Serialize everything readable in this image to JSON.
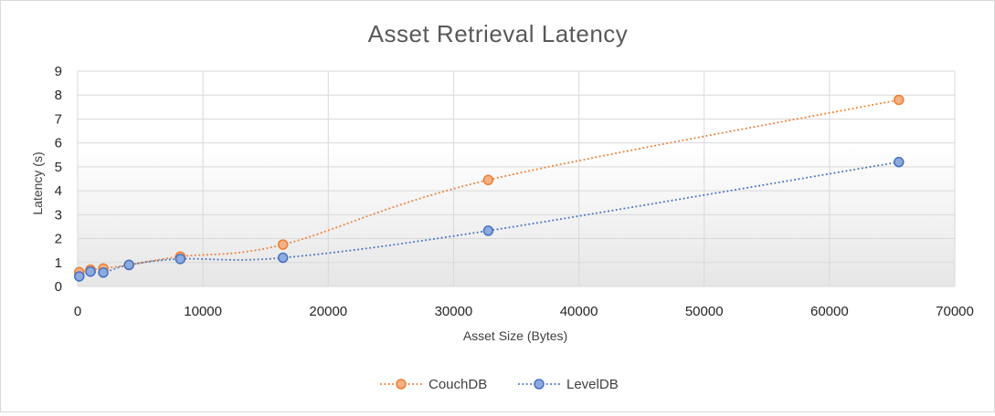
{
  "chart_data": {
    "type": "scatter",
    "title": "Asset Retrieval Latency",
    "xlabel": "Asset Size (Bytes)",
    "ylabel": "Latency (s)",
    "xlim": [
      0,
      70000
    ],
    "ylim": [
      0,
      9
    ],
    "x_ticks": [
      "0",
      "10000",
      "20000",
      "30000",
      "40000",
      "50000",
      "60000",
      "70000"
    ],
    "y_ticks": [
      "0",
      "1",
      "2",
      "3",
      "4",
      "5",
      "6",
      "7",
      "8",
      "9"
    ],
    "grid": true,
    "legend_position": "bottom",
    "line_style": "dotted smoothed",
    "series": [
      {
        "name": "CouchDB",
        "color": "#ED7D31",
        "fill": "#F4B183",
        "x": [
          128,
          1024,
          2048,
          4096,
          8192,
          16384,
          32768,
          65536
        ],
        "y": [
          0.6,
          0.7,
          0.75,
          0.9,
          1.25,
          1.75,
          4.45,
          7.8
        ]
      },
      {
        "name": "LevelDB",
        "color": "#4472C4",
        "fill": "#8FAADC",
        "x": [
          128,
          1024,
          2048,
          4096,
          8192,
          16384,
          32768,
          65536
        ],
        "y": [
          0.42,
          0.62,
          0.58,
          0.9,
          1.15,
          1.2,
          2.33,
          5.2
        ]
      }
    ]
  }
}
